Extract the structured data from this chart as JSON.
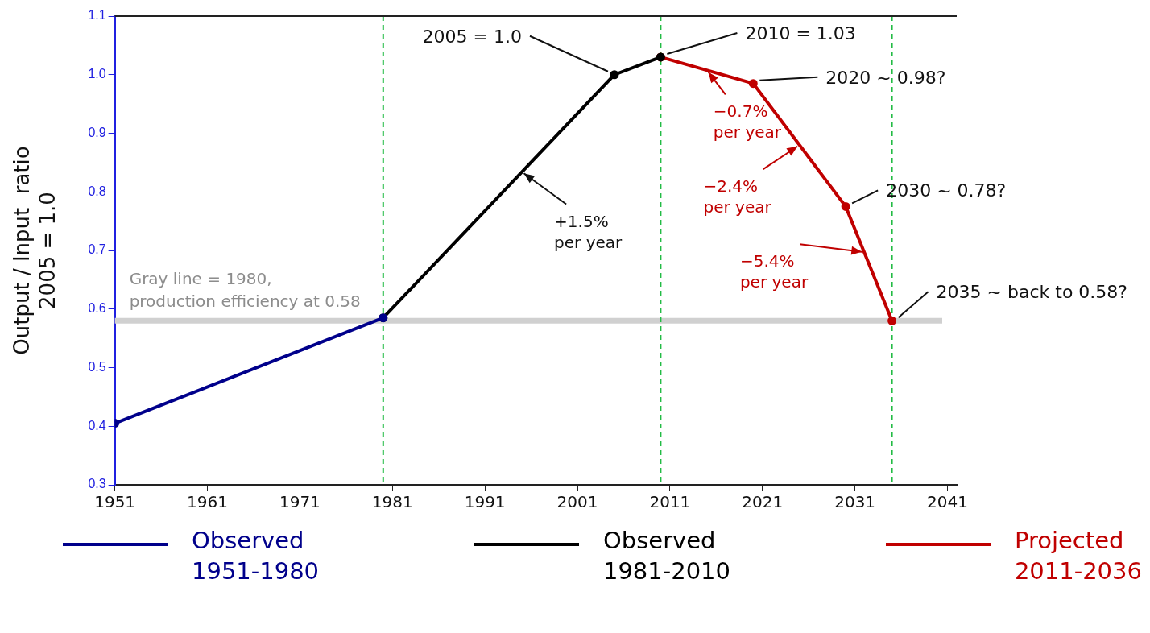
{
  "chart_data": {
    "type": "line",
    "ylabel": "Output / Input  ratio\n2005 = 1.0",
    "series": [
      {
        "name": "Observed\n1951-1980",
        "color": "#00008b",
        "x": [
          1951,
          1980
        ],
        "values": [
          0.405,
          0.585
        ]
      },
      {
        "name": "Observed\n1981-2010",
        "color": "#000000",
        "x": [
          1980,
          2005,
          2010
        ],
        "values": [
          0.585,
          1.0,
          1.03
        ]
      },
      {
        "name": "Projected\n2011-2036",
        "color": "#c00000",
        "x": [
          2010,
          2020,
          2030,
          2035
        ],
        "values": [
          1.03,
          0.985,
          0.775,
          0.58
        ]
      }
    ],
    "xlim": [
      1951,
      2042
    ],
    "xticks": [
      1951,
      1961,
      1971,
      1981,
      1991,
      2001,
      2011,
      2021,
      2031,
      2041
    ],
    "ylim": [
      0.3,
      1.1
    ],
    "yticks": [
      0.3,
      0.4,
      0.5,
      0.6,
      0.7,
      0.8,
      0.9,
      {
        "value": 1,
        "label": "1.0"
      },
      1.1
    ],
    "marker": "circle",
    "legend": "bottom",
    "ref_lines": [
      {
        "axis": "y",
        "value": 0.58,
        "label": "Gray line = 1980,\nproduction efficiency at 0.58",
        "color": "#d0d0d0"
      },
      {
        "axis": "x",
        "value": 1980,
        "color": "#22bb44",
        "line_style": "dashed"
      },
      {
        "axis": "x",
        "value": 2010,
        "color": "#22bb44",
        "line_style": "dashed"
      },
      {
        "axis": "x",
        "value": 2035,
        "color": "#22bb44",
        "line_style": "dashed"
      }
    ],
    "annotations": [
      {
        "text": "2005 = 1.0",
        "x": 2005,
        "y": 1.0
      },
      {
        "text": "2010 = 1.03",
        "x": 2010,
        "y": 1.03
      },
      {
        "text": "2020 ~ 0.98?",
        "x": 2020,
        "y": 0.985
      },
      {
        "text": "2030 ~ 0.78?",
        "x": 2030,
        "y": 0.775
      },
      {
        "text": "2035 ~ back to 0.58?",
        "x": 2035,
        "y": 0.58
      },
      {
        "text": "+1.5%\nper year",
        "x": 1995,
        "y": 0.834
      },
      {
        "text": "−0.7%\nper year",
        "x": 2015,
        "y": 1.0075
      },
      {
        "text": "−2.4%\nper year",
        "x": 2025,
        "y": 0.88
      },
      {
        "text": "−5.4%\nper year",
        "x": 2032,
        "y": 0.697
      }
    ]
  }
}
